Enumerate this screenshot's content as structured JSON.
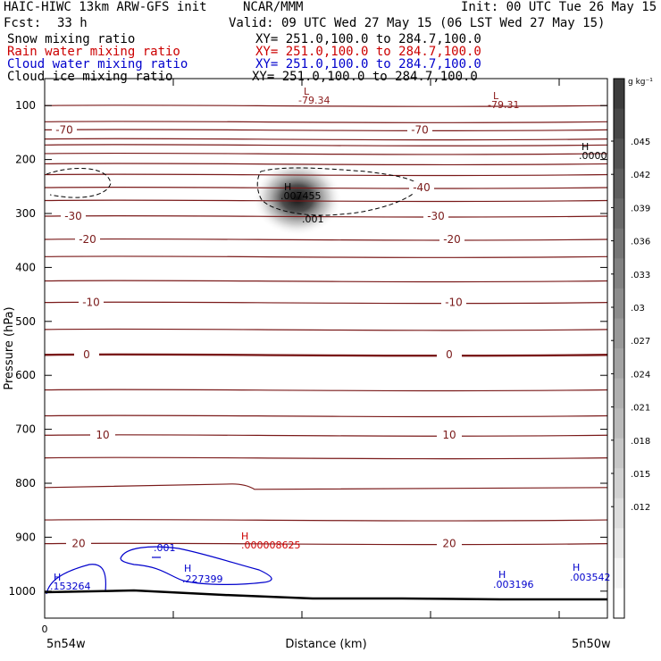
{
  "header": {
    "model": "HAIC-HIWC 13km ARW-GFS init",
    "org": "NCAR/MMM",
    "init": "Init: 00 UTC Tue 26 May 15",
    "fcst_label": "Fcst:",
    "fcst_value": "33 h",
    "valid": "Valid: 09 UTC Wed 27 May 15 (06 LST Wed 27 May 15)"
  },
  "fields": [
    {
      "name": "Snow mixing ratio",
      "xy": "XY= 251.0,100.0 to 284.7,100.0",
      "color": "#000000"
    },
    {
      "name": "Rain water mixing ratio",
      "xy": "XY= 251.0,100.0 to 284.7,100.0",
      "color": "#cc0000"
    },
    {
      "name": "Cloud water mixing ratio",
      "xy": "XY= 251.0,100.0 to 284.7,100.0",
      "color": "#0000cc"
    },
    {
      "name": "Cloud ice mixing ratio",
      "xy": "XY= 251.0,100.0 to 284.7,100.0",
      "color": "#000000"
    }
  ],
  "chart_data": {
    "type": "line",
    "title": "",
    "xlabel": "Distance (km)",
    "ylabel": "Pressure (hPa)",
    "x_start_label": "5n54w",
    "x_end_label": "5n50w",
    "x_zero_tick": "0",
    "ylim": [
      1050,
      50
    ],
    "y_ticks": [
      100,
      200,
      300,
      400,
      500,
      600,
      700,
      800,
      900,
      1000
    ],
    "temperature_contours": [
      {
        "value": -70,
        "label": "-70"
      },
      {
        "value": -30,
        "label": "-30"
      },
      {
        "value": -20,
        "label": "-20"
      },
      {
        "value": -10,
        "label": "-10"
      },
      {
        "value": 0,
        "label": "0"
      },
      {
        "value": 10,
        "label": "10"
      },
      {
        "value": 20,
        "label": "20"
      }
    ],
    "extra_labels": [
      {
        "text": "-40"
      }
    ],
    "extrema": [
      {
        "letter": "L",
        "value": "-79.34",
        "color": "#8b1a1a"
      },
      {
        "letter": "L",
        "value": "-79.31",
        "color": "#8b1a1a"
      },
      {
        "letter": "H",
        "value": ".0000",
        "color": "#000000"
      },
      {
        "letter": "H",
        "value": ".007455",
        "color": "#000000"
      },
      {
        "letter": "",
        "value": ".001",
        "color": "#000000"
      },
      {
        "letter": "H",
        "value": ".000008625",
        "color": "#cc0000"
      },
      {
        "letter": "H",
        "value": ".153264",
        "color": "#0000cc"
      },
      {
        "letter": "H",
        "value": ".227399",
        "color": "#0000cc"
      },
      {
        "letter": "",
        "value": ".001",
        "color": "#0000cc"
      },
      {
        "letter": "H",
        "value": ".003196",
        "color": "#0000cc"
      },
      {
        "letter": "H",
        "value": ".003542",
        "color": "#0000cc"
      }
    ],
    "colorbar": {
      "unit_label": "g kg⁻¹",
      "ticks": [
        ".045",
        ".042",
        ".039",
        ".036",
        ".033",
        ".03",
        ".027",
        ".024",
        ".021",
        ".018",
        ".015",
        ".012"
      ]
    },
    "grid": false,
    "legend": "top-left"
  }
}
